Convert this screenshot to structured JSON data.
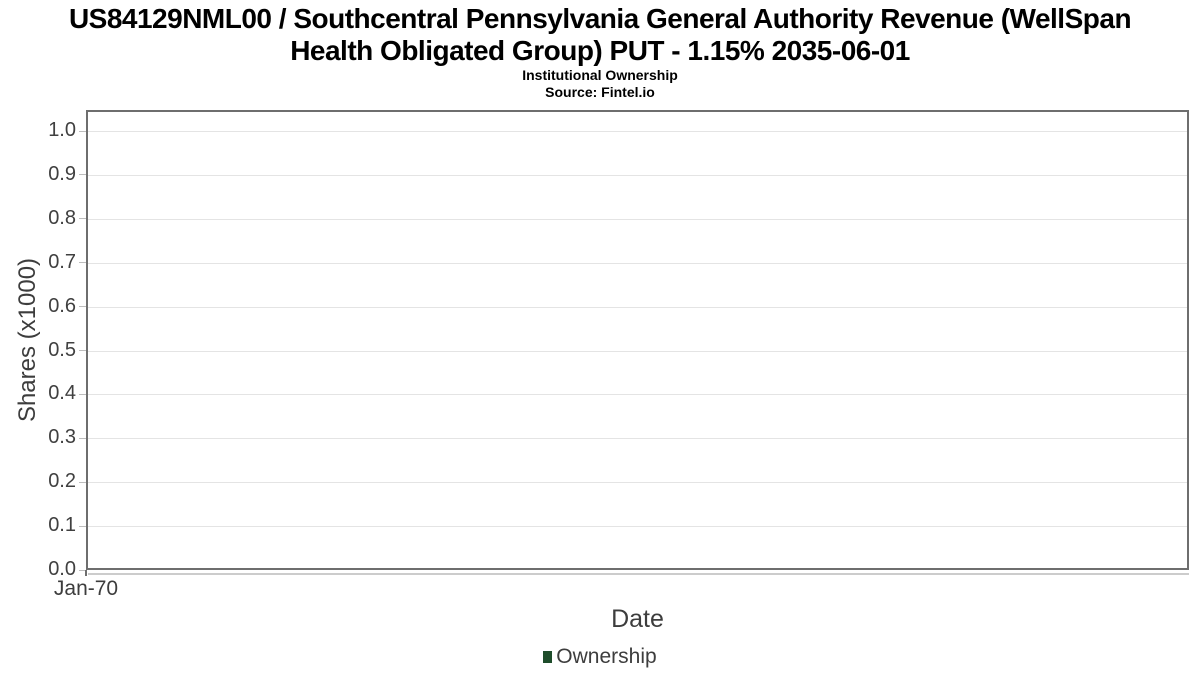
{
  "header": {
    "title_lines": [
      "US84129NML00 / Southcentral Pennsylvania General Authority Revenue (WellSpan",
      "Health Obligated Group) PUT - 1.15% 2035-06-01"
    ],
    "subtitle": "Institutional Ownership",
    "source": "Source: Fintel.io"
  },
  "chart_data": {
    "type": "line",
    "title": "US84129NML00 / Southcentral Pennsylvania General Authority Revenue (WellSpan Health Obligated Group) PUT - 1.15% 2035-06-01",
    "subtitle": "Institutional Ownership",
    "source": "Source: Fintel.io",
    "xlabel": "Date",
    "ylabel": "Shares (x1000)",
    "x_ticks": [
      "Jan-70"
    ],
    "y_ticks": [
      "0.0",
      "0.1",
      "0.2",
      "0.3",
      "0.4",
      "0.5",
      "0.6",
      "0.7",
      "0.8",
      "0.9",
      "1.0"
    ],
    "ylim": [
      0,
      1.05
    ],
    "grid": true,
    "legend": {
      "position": "bottom",
      "entries": [
        {
          "label": "Ownership",
          "color": "#1e4d2b"
        }
      ]
    },
    "series": [
      {
        "name": "Ownership",
        "x": [],
        "y": []
      }
    ],
    "colors": {
      "plot_border": "#6e6e6e",
      "gridline": "#e4e4e4",
      "tick_text": "#404040",
      "axis_text": "#3d3d3d",
      "title_text": "#000000"
    }
  }
}
